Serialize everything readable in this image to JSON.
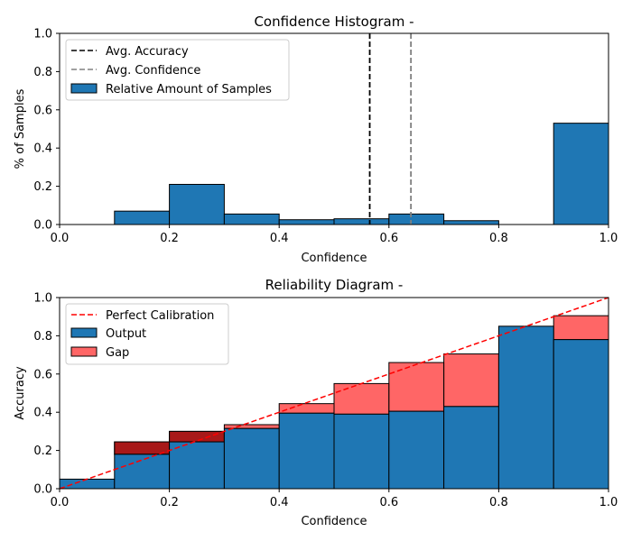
{
  "chart_data": [
    {
      "type": "bar",
      "title": "Confidence Histogram -",
      "xlabel": "Confidence",
      "ylabel": "% of Samples",
      "xlim": [
        0,
        1
      ],
      "ylim": [
        0,
        1
      ],
      "xticks": [
        "0.0",
        "0.2",
        "0.4",
        "0.6",
        "0.8",
        "1.0"
      ],
      "yticks": [
        "0.0",
        "0.2",
        "0.4",
        "0.6",
        "0.8",
        "1.0"
      ],
      "bin_edges": [
        0.0,
        0.1,
        0.2,
        0.3,
        0.4,
        0.5,
        0.6,
        0.7,
        0.8,
        0.9,
        1.0
      ],
      "series": [
        {
          "name": "Relative Amount of Samples",
          "values": [
            0.0,
            0.07,
            0.21,
            0.055,
            0.025,
            0.03,
            0.055,
            0.02,
            0.0,
            0.53
          ],
          "color": "#1f77b4"
        }
      ],
      "lines": [
        {
          "name": "Avg. Accuracy",
          "x": 0.565,
          "color": "#000000",
          "style": "dashed"
        },
        {
          "name": "Avg. Confidence",
          "x": 0.64,
          "color": "#808080",
          "style": "dashed"
        }
      ],
      "legend": "top-left",
      "grid": false
    },
    {
      "type": "bar",
      "title": "Reliability Diagram -",
      "xlabel": "Confidence",
      "ylabel": "Accuracy",
      "xlim": [
        0,
        1
      ],
      "ylim": [
        0,
        1
      ],
      "xticks": [
        "0.0",
        "0.2",
        "0.4",
        "0.6",
        "0.8",
        "1.0"
      ],
      "yticks": [
        "0.0",
        "0.2",
        "0.4",
        "0.6",
        "0.8",
        "1.0"
      ],
      "bin_edges": [
        0.0,
        0.1,
        0.2,
        0.3,
        0.4,
        0.5,
        0.6,
        0.7,
        0.8,
        0.9,
        1.0
      ],
      "series": [
        {
          "name": "Output",
          "values": [
            0.05,
            0.18,
            0.245,
            0.315,
            0.395,
            0.39,
            0.405,
            0.43,
            0.85,
            0.78
          ],
          "color": "#1f77b4"
        },
        {
          "name": "Gap",
          "values": [
            0.05,
            0.245,
            0.3,
            0.335,
            0.445,
            0.55,
            0.66,
            0.705,
            0.85,
            0.905
          ],
          "color": "#ff0000",
          "note_overconfident_color": "#8b0000"
        }
      ],
      "reference_line": {
        "name": "Perfect Calibration",
        "from": [
          0,
          0
        ],
        "to": [
          1,
          1
        ],
        "color": "#ff0000",
        "style": "dashed"
      },
      "legend": "top-left",
      "grid": false
    }
  ]
}
